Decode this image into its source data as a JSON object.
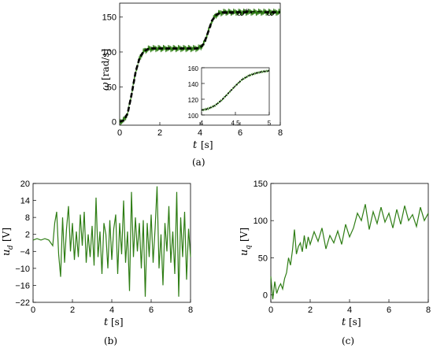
{
  "figure": {
    "panels": [
      {
        "id": "a",
        "caption": "(a)"
      },
      {
        "id": "b",
        "caption": "(b)"
      },
      {
        "id": "c",
        "caption": "(c)"
      }
    ]
  },
  "colors": {
    "signal": "#2e7d14",
    "reference": "#000000",
    "highlight": "#e03020"
  },
  "chart_data": [
    {
      "id": "a",
      "type": "line",
      "xlabel_var": "t",
      "xlabel_unit": "[s]",
      "ylabel_var": "ω",
      "ylabel_unit": "[rad/s]",
      "xlim": [
        0,
        8
      ],
      "ylim": [
        -5,
        170
      ],
      "xticks": [
        "0",
        "2",
        "4",
        "6",
        "8"
      ],
      "yticks": [
        "0",
        "50",
        "100",
        "150"
      ],
      "legend": [
        "ω*",
        "ω"
      ],
      "legend_position": "top-right",
      "series": [
        {
          "name": "ω*",
          "style": "dashed",
          "x": [
            0,
            0.2,
            0.4,
            0.6,
            0.8,
            1.0,
            1.2,
            1.4,
            1.6,
            1.8,
            2.0,
            3.8,
            4.0,
            4.2,
            4.4,
            4.6,
            4.8,
            5.0,
            5.2,
            8.0
          ],
          "y": [
            0,
            2,
            12,
            40,
            72,
            92,
            101,
            104,
            105,
            105,
            105,
            105,
            106,
            112,
            128,
            145,
            153,
            156,
            157,
            157
          ]
        },
        {
          "name": "ω",
          "style": "solid-noisy",
          "x": [
            0,
            0.2,
            0.4,
            0.6,
            0.8,
            1.0,
            1.2,
            1.4,
            1.6,
            1.8,
            2.0,
            3.8,
            4.0,
            4.2,
            4.4,
            4.6,
            4.8,
            5.0,
            5.2,
            8.0
          ],
          "y": [
            0,
            2,
            12,
            40,
            72,
            92,
            101,
            104,
            105,
            105,
            105,
            105,
            106,
            112,
            128,
            145,
            153,
            156,
            157,
            157
          ]
        }
      ],
      "inset": {
        "xlim": [
          4,
          5
        ],
        "ylim": [
          100,
          160
        ],
        "xticks": [
          "4",
          "4.5",
          "5"
        ],
        "yticks": [
          "100",
          "120",
          "140",
          "160"
        ],
        "x": [
          4.0,
          4.1,
          4.2,
          4.3,
          4.4,
          4.5,
          4.6,
          4.7,
          4.8,
          4.9,
          5.0
        ],
        "y": [
          106,
          108,
          112,
          119,
          128,
          137,
          145,
          150,
          153,
          155,
          156
        ]
      }
    },
    {
      "id": "b",
      "type": "line",
      "xlabel_var": "t",
      "xlabel_unit": "[s]",
      "ylabel_var": "u",
      "ylabel_sub": "d",
      "ylabel_unit": "[V]",
      "xlim": [
        0,
        8
      ],
      "ylim": [
        -22,
        20
      ],
      "xticks": [
        "0",
        "2",
        "4",
        "6",
        "8"
      ],
      "yticks": [
        "20",
        "14",
        "8",
        "2",
        "−4",
        "−10",
        "−16",
        "−22"
      ],
      "series": [
        {
          "name": "",
          "x": [
            0,
            0.2,
            0.4,
            0.6,
            0.8,
            1.0,
            1.1,
            1.2,
            1.3,
            1.4,
            1.5,
            1.6,
            1.7,
            1.8,
            1.9,
            2.0,
            2.1,
            2.2,
            2.3,
            2.4,
            2.5,
            2.6,
            2.7,
            2.8,
            2.9,
            3.0,
            3.1,
            3.2,
            3.3,
            3.4,
            3.5,
            3.6,
            3.7,
            3.8,
            3.9,
            4.0,
            4.1,
            4.2,
            4.3,
            4.4,
            4.5,
            4.6,
            4.7,
            4.8,
            4.9,
            5.0,
            5.1,
            5.2,
            5.3,
            5.4,
            5.5,
            5.6,
            5.7,
            5.8,
            5.9,
            6.0,
            6.1,
            6.2,
            6.3,
            6.4,
            6.5,
            6.6,
            6.7,
            6.8,
            6.9,
            7.0,
            7.1,
            7.2,
            7.3,
            7.4,
            7.5,
            7.6,
            7.7,
            7.8,
            7.9,
            8.0
          ],
          "y": [
            0,
            0.5,
            0,
            0.5,
            0,
            -2,
            6,
            10,
            -5,
            -13,
            8,
            -8,
            4,
            12,
            -4,
            6,
            -7,
            3,
            -6,
            9,
            -2,
            10,
            -8,
            2,
            -6,
            5,
            -9,
            15,
            -6,
            3,
            -12,
            6,
            2,
            -10,
            7,
            -7,
            4,
            9,
            -12,
            6,
            -5,
            14,
            -8,
            3,
            -18,
            17,
            -6,
            8,
            -4,
            6,
            -10,
            7,
            -20,
            6,
            -6,
            9,
            -8,
            4,
            19,
            -10,
            2,
            -16,
            6,
            -4,
            12,
            -8,
            3,
            -12,
            17,
            -20,
            8,
            -6,
            10,
            -14,
            4,
            -6
          ]
        }
      ]
    },
    {
      "id": "c",
      "type": "line",
      "xlabel_var": "t",
      "xlabel_unit": "[s]",
      "ylabel_var": "u",
      "ylabel_sub": "q",
      "ylabel_unit": "[V]",
      "xlim": [
        0,
        8
      ],
      "ylim": [
        -10,
        150
      ],
      "xticks": [
        "0",
        "2",
        "4",
        "6",
        "8"
      ],
      "yticks": [
        "0",
        "50",
        "100",
        "150"
      ],
      "series": [
        {
          "name": "",
          "x": [
            0,
            0.1,
            0.2,
            0.3,
            0.4,
            0.5,
            0.6,
            0.7,
            0.8,
            0.9,
            1.0,
            1.1,
            1.2,
            1.3,
            1.4,
            1.5,
            1.6,
            1.7,
            1.8,
            1.9,
            2.0,
            2.2,
            2.4,
            2.6,
            2.8,
            3.0,
            3.2,
            3.4,
            3.6,
            3.8,
            4.0,
            4.2,
            4.4,
            4.6,
            4.8,
            5.0,
            5.2,
            5.4,
            5.6,
            5.8,
            6.0,
            6.2,
            6.4,
            6.6,
            6.8,
            7.0,
            7.2,
            7.4,
            7.6,
            7.8,
            8.0
          ],
          "y": [
            25,
            -6,
            18,
            2,
            10,
            15,
            8,
            22,
            30,
            50,
            40,
            60,
            88,
            55,
            65,
            70,
            58,
            80,
            62,
            78,
            68,
            85,
            72,
            90,
            62,
            80,
            70,
            86,
            68,
            95,
            78,
            90,
            110,
            100,
            122,
            88,
            112,
            96,
            118,
            98,
            110,
            90,
            115,
            95,
            120,
            100,
            108,
            92,
            118,
            100,
            110
          ]
        }
      ]
    }
  ]
}
